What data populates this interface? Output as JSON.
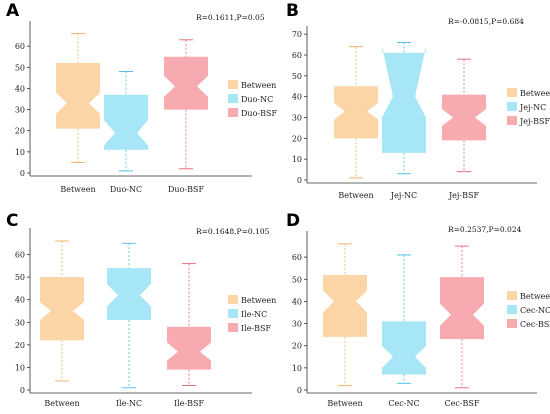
{
  "chart_data": [
    {
      "type": "box",
      "panel_label": "A",
      "stat_text": "R=0.1611,P=0.05",
      "ylim": [
        0,
        70
      ],
      "yticks": [
        0,
        10,
        20,
        30,
        40,
        50,
        60
      ],
      "categories": [
        "Between",
        "Duo-NC",
        "Duo-BSF"
      ],
      "legend": [
        "Between",
        "Duo-NC",
        "Duo-BSF"
      ],
      "boxes": [
        {
          "category": "Between",
          "min": 5,
          "q1": 21,
          "median": 33,
          "q3": 52,
          "max": 66,
          "notch_low": 28,
          "notch_high": 38
        },
        {
          "category": "Duo-NC",
          "min": 1,
          "q1": 11,
          "median": 19,
          "q3": 37,
          "max": 48,
          "notch_low": 13,
          "notch_high": 25
        },
        {
          "category": "Duo-BSF",
          "min": 2,
          "q1": 30,
          "median": 41,
          "q3": 55,
          "max": 63,
          "notch_low": 36,
          "notch_high": 46
        }
      ]
    },
    {
      "type": "box",
      "panel_label": "B",
      "stat_text": "R=-0.0815,P=0.684",
      "ylim": [
        0,
        72
      ],
      "yticks": [
        0,
        10,
        20,
        30,
        40,
        50,
        60,
        70
      ],
      "categories": [
        "Between",
        "Jej-NC",
        "Jej-BSF"
      ],
      "legend": [
        "Between",
        "Jej-NC",
        "Jej-BSF"
      ],
      "boxes": [
        {
          "category": "Between",
          "min": 1,
          "q1": 20,
          "median": 33,
          "q3": 45,
          "max": 64,
          "notch_low": 29,
          "notch_high": 37
        },
        {
          "category": "Jej-NC",
          "min": 3,
          "q1": 13,
          "median": 40,
          "q3": 61,
          "max": 66,
          "notch_low": 30,
          "notch_high": 64
        },
        {
          "category": "Jej-BSF",
          "min": 4,
          "q1": 19,
          "median": 30,
          "q3": 41,
          "max": 58,
          "notch_low": 26,
          "notch_high": 34
        }
      ]
    },
    {
      "type": "box",
      "panel_label": "C",
      "stat_text": "R=0.1648,P=0.105",
      "ylim": [
        0,
        70
      ],
      "yticks": [
        0,
        10,
        20,
        30,
        40,
        50,
        60
      ],
      "categories": [
        "Between",
        "Ile-NC",
        "Ile-BSF"
      ],
      "legend": [
        "Between",
        "Ile-NC",
        "Ile-BSF"
      ],
      "boxes": [
        {
          "category": "Between",
          "min": 4,
          "q1": 22,
          "median": 35,
          "q3": 50,
          "max": 66,
          "notch_low": 31,
          "notch_high": 39
        },
        {
          "category": "Ile-NC",
          "min": 1,
          "q1": 31,
          "median": 42,
          "q3": 54,
          "max": 65,
          "notch_low": 37,
          "notch_high": 47
        },
        {
          "category": "Ile-BSF",
          "min": 2,
          "q1": 9,
          "median": 17,
          "q3": 28,
          "max": 56,
          "notch_low": 13,
          "notch_high": 21
        }
      ]
    },
    {
      "type": "box",
      "panel_label": "D",
      "stat_text": "R=0.2537,P=0.024",
      "ylim": [
        0,
        70
      ],
      "yticks": [
        0,
        10,
        20,
        30,
        40,
        50,
        60
      ],
      "categories": [
        "Between",
        "Cec-NC",
        "Cec-BSF"
      ],
      "legend": [
        "Between",
        "Cec-NC",
        "Cec-BSF"
      ],
      "boxes": [
        {
          "category": "Between",
          "min": 2,
          "q1": 24,
          "median": 40,
          "q3": 52,
          "max": 66,
          "notch_low": 35,
          "notch_high": 45
        },
        {
          "category": "Cec-NC",
          "min": 3,
          "q1": 7,
          "median": 15,
          "q3": 31,
          "max": 61,
          "notch_low": 10,
          "notch_high": 20
        },
        {
          "category": "Cec-BSF",
          "min": 1,
          "q1": 23,
          "median": 34,
          "q3": 51,
          "max": 65,
          "notch_low": 29,
          "notch_high": 39
        }
      ]
    }
  ],
  "colors": {
    "fills": [
      "#fcd5a6",
      "#a6e6f6",
      "#f8aab1"
    ],
    "whiskers": [
      "#f0b36b",
      "#52c6e4",
      "#e8707c"
    ]
  }
}
